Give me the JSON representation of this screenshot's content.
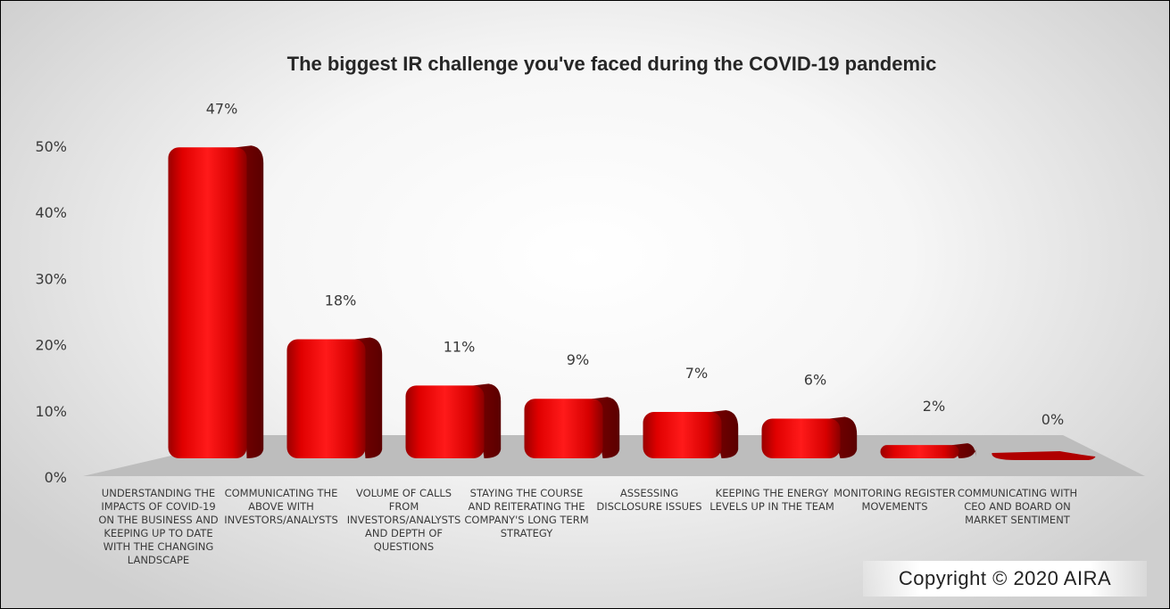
{
  "chart_data": {
    "type": "bar",
    "title": "The biggest IR challenge you've faced during the COVID-19 pandemic",
    "categories": [
      "UNDERSTANDING THE IMPACTS OF COVID-19 ON THE BUSINESS AND KEEPING UP TO DATE WITH THE CHANGING LANDSCAPE",
      "COMMUNICATING THE ABOVE WITH INVESTORS/ANALYSTS",
      "VOLUME OF CALLS FROM INVESTORS/ANALYSTS AND DEPTH OF QUESTIONS",
      "STAYING THE COURSE AND REITERATING THE COMPANY'S LONG TERM STRATEGY",
      "ASSESSING DISCLOSURE ISSUES",
      "KEEPING THE ENERGY LEVELS UP IN THE TEAM",
      "MONITORING REGISTER MOVEMENTS",
      "COMMUNICATING WITH CEO AND BOARD ON MARKET SENTIMENT"
    ],
    "values": [
      47,
      18,
      11,
      9,
      7,
      6,
      2,
      0
    ],
    "data_labels": [
      "47%",
      "18%",
      "11%",
      "9%",
      "7%",
      "6%",
      "2%",
      "0%"
    ],
    "y_ticks": [
      "0%",
      "10%",
      "20%",
      "30%",
      "40%",
      "50%"
    ],
    "ylim": [
      0,
      50
    ],
    "bar_color": "#d00000",
    "floor_color": "#bdbdbd",
    "grid": false,
    "legend": "none"
  },
  "copyright": "Copyright © 2020  AIRA"
}
